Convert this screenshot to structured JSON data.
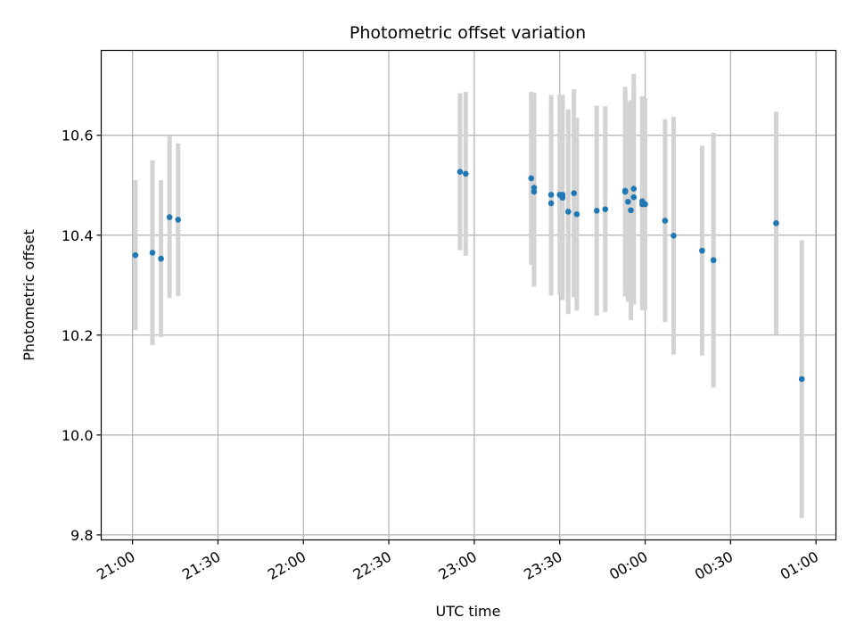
{
  "chart_data": {
    "type": "scatter",
    "title": "Photometric offset variation",
    "xlabel": "UTC time",
    "ylabel": "Photometric offset",
    "x_axis_kind": "time",
    "x_ticks": [
      "21:00",
      "21:30",
      "22:00",
      "22:30",
      "23:00",
      "23:30",
      "00:00",
      "00:30",
      "01:00"
    ],
    "y_ticks": [
      "9.8",
      "10.0",
      "10.2",
      "10.4",
      "10.6"
    ],
    "xlim": [
      "20:49",
      "01:07"
    ],
    "ylim": [
      9.79,
      10.77
    ],
    "grid": true,
    "colors": {
      "points": "#1f77b4",
      "errorbars": "#d3d3d3",
      "grid": "#b0b0b0"
    },
    "series": [
      {
        "points": [
          {
            "x": "21:01",
            "y": 10.36,
            "yerr": 0.15
          },
          {
            "x": "21:07",
            "y": 10.365,
            "yerr": 0.185
          },
          {
            "x": "21:10",
            "y": 10.353,
            "yerr": 0.157
          },
          {
            "x": "21:13",
            "y": 10.436,
            "yerr": 0.162
          },
          {
            "x": "21:16",
            "y": 10.431,
            "yerr": 0.153
          },
          {
            "x": "22:55",
            "y": 10.527,
            "yerr": 0.157
          },
          {
            "x": "22:57",
            "y": 10.523,
            "yerr": 0.164
          },
          {
            "x": "23:20",
            "y": 10.514,
            "yerr": 0.173
          },
          {
            "x": "23:21",
            "y": 10.495,
            "yerr": 0.19
          },
          {
            "x": "23:21",
            "y": 10.487,
            "yerr": 0.19
          },
          {
            "x": "23:27",
            "y": 10.481,
            "yerr": 0.2
          },
          {
            "x": "23:27",
            "y": 10.464,
            "yerr": 0.185
          },
          {
            "x": "23:30",
            "y": 10.481,
            "yerr": 0.2
          },
          {
            "x": "23:31",
            "y": 10.475,
            "yerr": 0.205
          },
          {
            "x": "23:31",
            "y": 10.481,
            "yerr": 0.2
          },
          {
            "x": "23:33",
            "y": 10.447,
            "yerr": 0.205
          },
          {
            "x": "23:35",
            "y": 10.484,
            "yerr": 0.208
          },
          {
            "x": "23:36",
            "y": 10.442,
            "yerr": 0.193
          },
          {
            "x": "23:43",
            "y": 10.449,
            "yerr": 0.21
          },
          {
            "x": "23:46",
            "y": 10.452,
            "yerr": 0.206
          },
          {
            "x": "23:53",
            "y": 10.487,
            "yerr": 0.21
          },
          {
            "x": "23:53",
            "y": 10.489,
            "yerr": 0.2
          },
          {
            "x": "23:54",
            "y": 10.467,
            "yerr": 0.2
          },
          {
            "x": "23:55",
            "y": 10.45,
            "yerr": 0.22
          },
          {
            "x": "23:56",
            "y": 10.493,
            "yerr": 0.23
          },
          {
            "x": "23:56",
            "y": 10.476,
            "yerr": 0.215
          },
          {
            "x": "23:59",
            "y": 10.468,
            "yerr": 0.21
          },
          {
            "x": "23:59",
            "y": 10.462,
            "yerr": 0.212
          },
          {
            "x": "00:00",
            "y": 10.462,
            "yerr": 0.212
          },
          {
            "x": "00:07",
            "y": 10.429,
            "yerr": 0.203
          },
          {
            "x": "00:10",
            "y": 10.399,
            "yerr": 0.238
          },
          {
            "x": "00:20",
            "y": 10.369,
            "yerr": 0.21
          },
          {
            "x": "00:24",
            "y": 10.35,
            "yerr": 0.255
          },
          {
            "x": "00:24",
            "y": 10.35,
            "yerr": 0.245
          },
          {
            "x": "00:46",
            "y": 10.424,
            "yerr": 0.223
          },
          {
            "x": "00:46",
            "y": 10.424,
            "yerr": 0.223
          },
          {
            "x": "00:55",
            "y": 10.112,
            "yerr": 0.278
          }
        ]
      }
    ]
  }
}
